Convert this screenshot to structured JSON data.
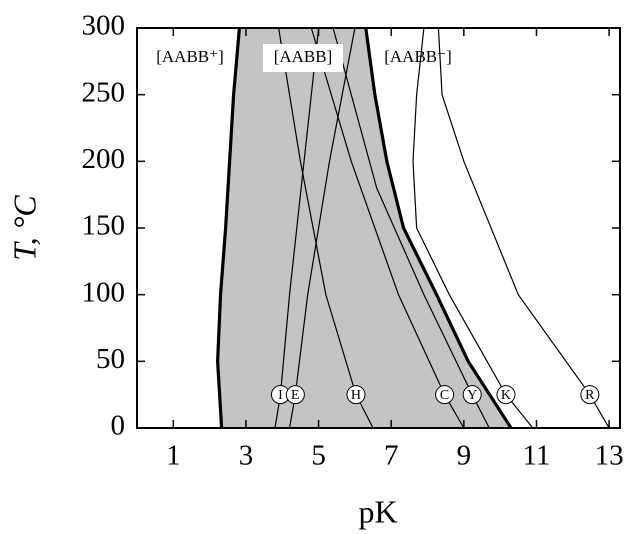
{
  "chart_data": {
    "type": "line",
    "xlabel": "pK",
    "ylabel": "T, °C",
    "xlim": [
      0,
      13.3
    ],
    "ylim": [
      0,
      300
    ],
    "xticks": [
      1,
      3,
      5,
      7,
      9,
      11,
      13
    ],
    "yticks": [
      0,
      50,
      100,
      150,
      200,
      250,
      300
    ],
    "region_labels": [
      "[AABB⁺]",
      "[AABB]",
      "[AABB⁻]"
    ],
    "shade_color": "#c4c4c4",
    "boundaries": [
      {
        "x": [
          2.33,
          2.22,
          2.3,
          2.44,
          2.55,
          2.66,
          2.82
        ],
        "values": [
          0,
          50,
          100,
          150,
          200,
          250,
          300
        ]
      },
      {
        "x": [
          10.3,
          9.12,
          8.25,
          7.34,
          6.88,
          6.55,
          6.3
        ],
        "values": [
          0,
          50,
          100,
          150,
          200,
          250,
          300
        ]
      }
    ],
    "curves": [
      {
        "label": "I",
        "x": [
          3.8,
          3.95,
          4.2,
          4.6,
          5.0
        ],
        "values": [
          0,
          25,
          100,
          200,
          300
        ]
      },
      {
        "label": "E",
        "x": [
          4.2,
          4.36,
          4.7,
          5.3,
          6.0
        ],
        "values": [
          0,
          25,
          100,
          200,
          300
        ]
      },
      {
        "label": "H",
        "x": [
          6.5,
          6.03,
          5.2,
          4.5,
          3.9
        ],
        "values": [
          0,
          25,
          100,
          200,
          300
        ]
      },
      {
        "label": "C",
        "x": [
          9.0,
          8.47,
          7.2,
          5.9,
          4.8
        ],
        "values": [
          0,
          25,
          100,
          200,
          300
        ]
      },
      {
        "label": "Y",
        "x": [
          9.7,
          9.23,
          7.9,
          6.6,
          5.4
        ],
        "values": [
          0,
          25,
          100,
          180,
          300
        ]
      },
      {
        "label": "K",
        "x": [
          10.9,
          10.16,
          8.6,
          7.7,
          7.6,
          7.7,
          7.9
        ],
        "values": [
          0,
          25,
          100,
          150,
          200,
          250,
          300
        ]
      },
      {
        "label": "R",
        "x": [
          13.0,
          12.47,
          10.5,
          9.0,
          8.4,
          8.3
        ],
        "values": [
          0,
          25,
          100,
          200,
          250,
          300
        ]
      }
    ]
  }
}
